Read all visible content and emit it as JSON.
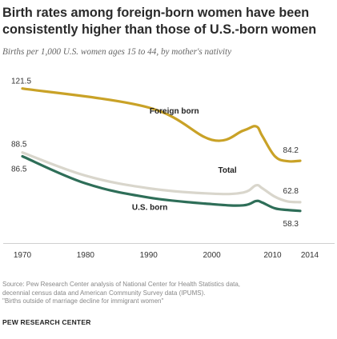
{
  "header": {
    "title": "Birth rates among foreign-born women have been consistently higher than those of U.S.-born women",
    "subtitle": "Births per 1,000 U.S. women ages 15 to 44, by mother's nativity"
  },
  "chart_data": {
    "type": "line",
    "title": "Birth rates among foreign-born women have been consistently higher than those of U.S.-born women",
    "subtitle": "Births per 1,000 U.S. women ages 15 to 44, by mother's nativity",
    "xlabel": "",
    "ylabel": "",
    "x_ticks": [
      "1970",
      "1980",
      "1990",
      "2000",
      "2010",
      "2014"
    ],
    "xlim": [
      1970,
      2014
    ],
    "ylim": [
      45,
      128
    ],
    "grid": false,
    "legend": "direct labels",
    "series": [
      {
        "name": "Foreign born",
        "color": "#c9a227",
        "x": [
          1970,
          1990,
          2000,
          2005,
          2007,
          2008,
          2010,
          2012,
          2014
        ],
        "y": [
          121.5,
          111.7,
          95.0,
          99.8,
          102.0,
          97.0,
          86.5,
          84.0,
          84.2
        ]
      },
      {
        "name": "Total",
        "color": "#d9d6cc",
        "x": [
          1970,
          1980,
          1990,
          2000,
          2005,
          2007,
          2008,
          2010,
          2012,
          2014
        ],
        "y": [
          88.5,
          76.5,
          70.0,
          67.2,
          67.8,
          71.5,
          70.0,
          65.6,
          63.2,
          62.8
        ]
      },
      {
        "name": "U.S. born",
        "color": "#2e6e58",
        "x": [
          1970,
          1980,
          1990,
          2000,
          2005,
          2007,
          2008,
          2010,
          2012,
          2014
        ],
        "y": [
          86.5,
          72.5,
          65.2,
          61.8,
          61.2,
          63.4,
          62.6,
          59.6,
          58.8,
          58.3
        ]
      }
    ],
    "data_labels": [
      {
        "text": "121.5",
        "x": 1970,
        "y": 121.5
      },
      {
        "text": "88.5",
        "x": 1970,
        "y": 88.5
      },
      {
        "text": "86.5",
        "x": 1970,
        "y": 86.5
      },
      {
        "text": "84.2",
        "x": 2014,
        "y": 84.2
      },
      {
        "text": "62.8",
        "x": 2014,
        "y": 62.8
      },
      {
        "text": "58.3",
        "x": 2014,
        "y": 58.3
      }
    ]
  },
  "footer": {
    "source_lines": [
      "Source: Pew Research Center analysis of National Center for Health Statistics data,",
      "decennial census data and American Community Survey data (IPUMS).",
      "\"Births outside of marriage decline for immigrant women\""
    ],
    "org": "PEW RESEARCH CENTER"
  }
}
